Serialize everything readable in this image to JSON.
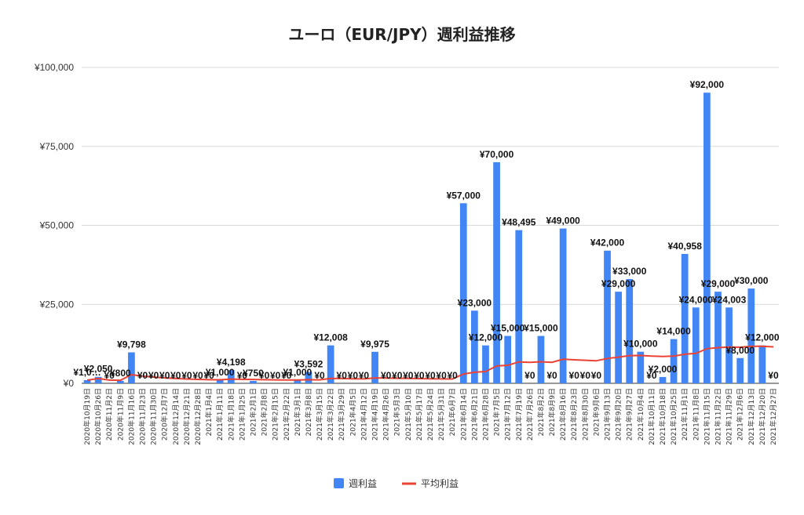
{
  "chart_data": {
    "type": "bar",
    "title": "ユーロ（EUR/JPY）週利益推移",
    "xlabel": "",
    "ylabel": "",
    "ylim": [
      0,
      100000
    ],
    "yticks": [
      "¥0",
      "¥25,000",
      "¥50,000",
      "¥75,000",
      "¥100,000"
    ],
    "ytick_values": [
      0,
      25000,
      50000,
      75000,
      100000
    ],
    "grid": "horizontal",
    "legend_position": "bottom",
    "colors": {
      "bar": "#4285F4",
      "line": "#EA4335"
    },
    "categories": [
      "2020年10月19日",
      "2020年10月26日",
      "2020年11月2日",
      "2020年11月9日",
      "2020年11月16日",
      "2020年11月23日",
      "2020年11月30日",
      "2020年12月7日",
      "2020年12月14日",
      "2020年12月21日",
      "2020年12月28日",
      "2021年1月4日",
      "2021年1月11日",
      "2021年1月18日",
      "2021年1月25日",
      "2021年2月1日",
      "2021年2月8日",
      "2021年2月15日",
      "2021年2月22日",
      "2021年3月1日",
      "2021年3月8日",
      "2021年3月15日",
      "2021年3月22日",
      "2021年3月29日",
      "2021年4月5日",
      "2021年4月12日",
      "2021年4月19日",
      "2021年4月26日",
      "2021年5月3日",
      "2021年5月10日",
      "2021年5月17日",
      "2021年5月24日",
      "2021年5月31日",
      "2021年6月7日",
      "2021年6月14日",
      "2021年6月21日",
      "2021年6月28日",
      "2021年7月5日",
      "2021年7月12日",
      "2021年7月19日",
      "2021年7月26日",
      "2021年8月2日",
      "2021年8月9日",
      "2021年8月16日",
      "2021年8月23日",
      "2021年8月30日",
      "2021年9月6日",
      "2021年9月13日",
      "2021年9月20日",
      "2021年9月27日",
      "2021年10月4日",
      "2021年10月11日",
      "2021年10月18日",
      "2021年10月25日",
      "2021年11月1日",
      "2021年11月8日",
      "2021年11月15日",
      "2021年11月22日",
      "2021年11月29日",
      "2021年12月6日",
      "2021年12月13日",
      "2021年12月20日",
      "2021年12月27日"
    ],
    "series": [
      {
        "name": "週利益",
        "type": "bar",
        "values": [
          1000,
          2050,
          0,
          800,
          9798,
          0,
          0,
          0,
          0,
          0,
          0,
          0,
          1000,
          4198,
          0,
          750,
          0,
          0,
          0,
          1000,
          3592,
          0,
          12008,
          0,
          0,
          0,
          9975,
          0,
          0,
          0,
          0,
          0,
          0,
          0,
          57000,
          23000,
          12000,
          70000,
          15000,
          48495,
          0,
          15000,
          0,
          49000,
          0,
          0,
          0,
          42000,
          29000,
          33000,
          10000,
          0,
          2000,
          14000,
          40958,
          24000,
          92000,
          29000,
          24003,
          8000,
          30000,
          12000,
          0
        ],
        "labels": [
          "¥1,0…",
          "¥2,050",
          "¥0",
          "¥800",
          "¥9,798",
          "¥0",
          "¥0",
          "¥0",
          "¥0",
          "¥0",
          "¥0",
          "¥0",
          "¥1,000",
          "¥4,198",
          "¥0",
          "¥750",
          "¥0",
          "¥0",
          "¥0",
          "¥1,000",
          "¥3,592",
          "¥0",
          "¥12,008",
          "¥0",
          "¥0",
          "¥0",
          "¥9,975",
          "¥0",
          "¥0",
          "¥0",
          "¥0",
          "¥0",
          "¥0",
          "¥0",
          "¥57,000",
          "¥23,000",
          "¥12,000",
          "¥70,000",
          "¥15,000",
          "¥48,495",
          "¥0",
          "¥15,000",
          "¥0",
          "¥49,000",
          "¥0",
          "¥0",
          "¥0",
          "¥42,000",
          "¥29,000",
          "¥33,000",
          "¥10,000",
          "¥0",
          "¥2,000",
          "¥14,000",
          "¥40,958",
          "¥24,000",
          "¥92,000",
          "¥29,000",
          "¥24,003",
          "¥8,000",
          "¥30,000",
          "¥12,000",
          "¥0"
        ]
      },
      {
        "name": "平均利益",
        "type": "line",
        "values": [
          1000,
          1525,
          1017,
          963,
          2730,
          2275,
          1950,
          1706,
          1517,
          1365,
          1241,
          1138,
          1127,
          1346,
          1257,
          1225,
          1153,
          1089,
          1032,
          1030,
          1152,
          1099,
          1574,
          1508,
          1448,
          1392,
          1710,
          1649,
          1592,
          1539,
          1489,
          1443,
          1399,
          1358,
          2948,
          3505,
          3733,
          5475,
          5712,
          6782,
          6617,
          6816,
          6657,
          7617,
          7448,
          7286,
          7131,
          7858,
          8292,
          8786,
          8810,
          8641,
          8520,
          8621,
          9216,
          9491,
          10958,
          11280,
          11476,
          11417,
          11722,
          11722,
          11536
        ]
      }
    ]
  }
}
